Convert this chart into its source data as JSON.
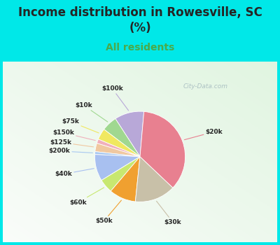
{
  "title": "Income distribution in Rowesville, SC\n(%)",
  "subtitle": "All residents",
  "labels": [
    "$100k",
    "$10k",
    "$75k",
    "$150k",
    "$125k",
    "$200k",
    "$40k",
    "$60k",
    "$50k",
    "$30k",
    "$20k"
  ],
  "values": [
    10.5,
    5.5,
    4.0,
    1.5,
    3.0,
    1.0,
    9.5,
    5.0,
    9.5,
    14.5,
    35.5
  ],
  "colors": [
    "#b8a8d8",
    "#a0d890",
    "#f0e860",
    "#f0b0bc",
    "#f0c8a0",
    "#a8c8f0",
    "#a8c0f0",
    "#c8e870",
    "#f0a030",
    "#c8c0a8",
    "#e88090"
  ],
  "line_colors": [
    "#b8a8d8",
    "#a0d890",
    "#f0e860",
    "#f0b0bc",
    "#f0c8a0",
    "#a8c8f0",
    "#a8c0f0",
    "#c8e870",
    "#f0a030",
    "#c8c0a8",
    "#e88090"
  ],
  "background_color": "#00e8e8",
  "title_color": "#252525",
  "subtitle_color": "#4aaa4a",
  "watermark": "City-Data.com",
  "startangle": 90
}
